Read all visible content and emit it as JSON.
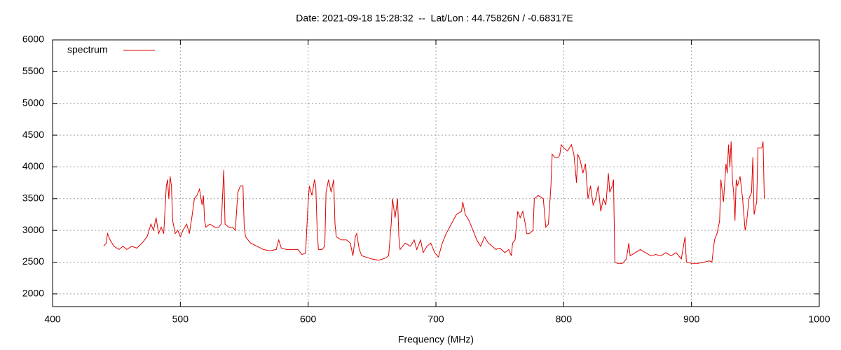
{
  "chart_data": {
    "type": "line",
    "title": "Date: 2021-09-18 15:28:32  --  Lat/Lon : 44.75826N / -0.68317E",
    "x_label": "Frequency (MHz)",
    "xlim": [
      400,
      1000
    ],
    "xticks": [
      400,
      500,
      600,
      700,
      800,
      900,
      1000
    ],
    "ylim": [
      1800,
      6000
    ],
    "yticks": [
      2000,
      2500,
      3000,
      3500,
      4000,
      4500,
      5000,
      5500,
      6000
    ],
    "grid": true,
    "legend": "top-left",
    "x": [
      440,
      442,
      443,
      445,
      448,
      452,
      455,
      458,
      462,
      466,
      470,
      474,
      477,
      479,
      481,
      483,
      485,
      487,
      489,
      490,
      491,
      492,
      493,
      494,
      496,
      498,
      500,
      502,
      505,
      507,
      509,
      511,
      513,
      515,
      517,
      518,
      519,
      520,
      523,
      527,
      530,
      532,
      534,
      535,
      538,
      541,
      543,
      545,
      547,
      549,
      550,
      551,
      555,
      560,
      565,
      570,
      575,
      577,
      579,
      583,
      587,
      592,
      595,
      598,
      600,
      601,
      603,
      605,
      606,
      607,
      608,
      611,
      613,
      614,
      616,
      618,
      620,
      621,
      622,
      626,
      630,
      633,
      635,
      637,
      638,
      640,
      642,
      645,
      650,
      655,
      660,
      663,
      665,
      666,
      668,
      670,
      671,
      672,
      676,
      680,
      683,
      685,
      688,
      690,
      693,
      696,
      699,
      702,
      705,
      708,
      712,
      716,
      720,
      721,
      723,
      726,
      729,
      732,
      735,
      738,
      741,
      744,
      747,
      750,
      754,
      757,
      759,
      760,
      762,
      764,
      766,
      768,
      770,
      771,
      773,
      776,
      777,
      780,
      784,
      786,
      788,
      790,
      791,
      793,
      796,
      797,
      798,
      800,
      803,
      806,
      808,
      810,
      811,
      813,
      815,
      817,
      819,
      821,
      823,
      825,
      827,
      829,
      831,
      833,
      835,
      836,
      838,
      839,
      840,
      842,
      846,
      849,
      851,
      852,
      856,
      860,
      864,
      868,
      872,
      876,
      880,
      884,
      888,
      892,
      895,
      896,
      900,
      905,
      910,
      914,
      916,
      918,
      920,
      922,
      923,
      925,
      927,
      928,
      929,
      930,
      931,
      932,
      933,
      934,
      935,
      936,
      938,
      940,
      942,
      943,
      945,
      947,
      948,
      949,
      951,
      952,
      954,
      955,
      956,
      957
    ],
    "series": [
      {
        "name": "spectrum",
        "color": "#e00000",
        "values": [
          2750,
          2800,
          2950,
          2850,
          2750,
          2700,
          2750,
          2700,
          2750,
          2720,
          2800,
          2900,
          3100,
          3000,
          3200,
          2950,
          3050,
          2950,
          3700,
          3800,
          3500,
          3850,
          3700,
          3150,
          2950,
          3000,
          2900,
          3000,
          3100,
          2950,
          3200,
          3500,
          3550,
          3650,
          3400,
          3550,
          3150,
          3050,
          3100,
          3050,
          3050,
          3100,
          3950,
          3100,
          3050,
          3050,
          3000,
          3600,
          3700,
          3700,
          3050,
          2900,
          2800,
          2750,
          2700,
          2680,
          2700,
          2850,
          2720,
          2700,
          2700,
          2700,
          2620,
          2640,
          3450,
          3700,
          3550,
          3800,
          3700,
          3050,
          2700,
          2700,
          2750,
          3600,
          3800,
          3600,
          3800,
          3100,
          2900,
          2850,
          2850,
          2800,
          2600,
          2900,
          2950,
          2700,
          2600,
          2580,
          2550,
          2530,
          2560,
          2600,
          3100,
          3500,
          3200,
          3500,
          2900,
          2700,
          2800,
          2750,
          2850,
          2700,
          2850,
          2650,
          2750,
          2800,
          2650,
          2580,
          2800,
          2950,
          3100,
          3250,
          3300,
          3450,
          3250,
          3150,
          3000,
          2850,
          2750,
          2900,
          2800,
          2750,
          2700,
          2720,
          2650,
          2700,
          2600,
          2800,
          2850,
          3300,
          3200,
          3300,
          3100,
          2950,
          2950,
          3000,
          3500,
          3550,
          3500,
          3050,
          3100,
          3700,
          4200,
          4150,
          4150,
          4200,
          4350,
          4300,
          4250,
          4350,
          4200,
          3750,
          4200,
          4100,
          3900,
          4050,
          3500,
          3700,
          3400,
          3500,
          3700,
          3300,
          3500,
          3400,
          3900,
          3600,
          3700,
          3800,
          2500,
          2480,
          2480,
          2550,
          2800,
          2600,
          2650,
          2700,
          2650,
          2600,
          2620,
          2600,
          2650,
          2600,
          2650,
          2550,
          2900,
          2500,
          2480,
          2480,
          2500,
          2520,
          2500,
          2850,
          2950,
          3150,
          3800,
          3450,
          4050,
          3900,
          4350,
          4000,
          4400,
          3800,
          3600,
          3150,
          3800,
          3700,
          3850,
          3500,
          3000,
          3100,
          3500,
          3600,
          4150,
          3250,
          3450,
          4300,
          4300,
          4300,
          4400,
          3500
        ]
      }
    ]
  }
}
